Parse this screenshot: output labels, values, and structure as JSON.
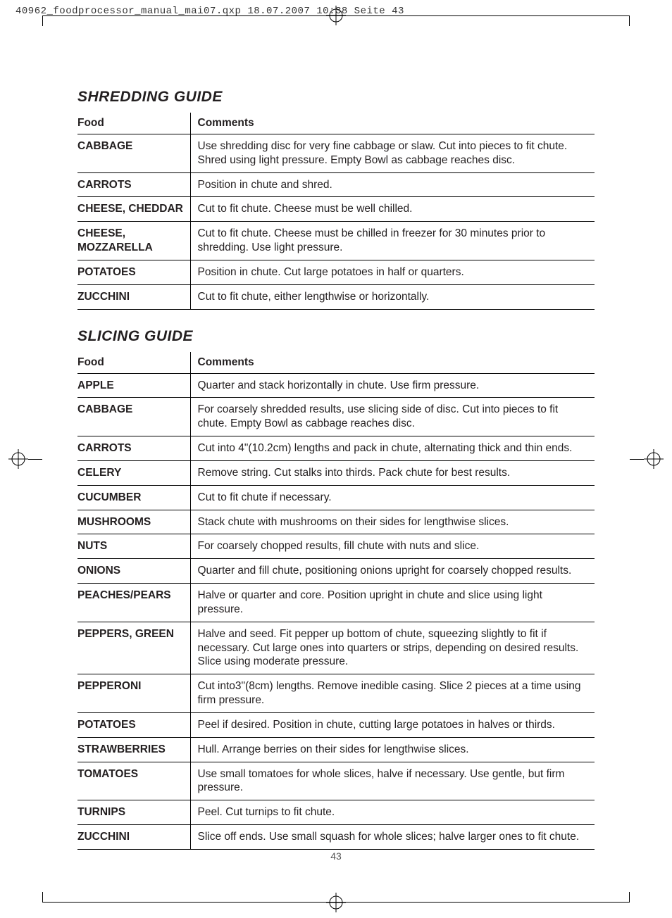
{
  "meta_header": "40962_foodprocessor_manual_mai07.qxp  18.07.2007  10:38  Seite 43",
  "page_number": "43",
  "columns": {
    "food": "Food",
    "comments": "Comments"
  },
  "shredding": {
    "title": "SHREDDING GUIDE",
    "rows": [
      {
        "food": "CABBAGE",
        "comment": "Use shredding disc for very fine cabbage or slaw. Cut into pieces to fit chute. Shred using light pressure. Empty Bowl as cabbage reaches disc."
      },
      {
        "food": "CARROTS",
        "comment": "Position in chute and shred."
      },
      {
        "food": "CHEESE, CHEDDAR",
        "comment": "Cut to fit chute. Cheese must be well chilled."
      },
      {
        "food": "CHEESE, MOZZARELLA",
        "comment": "Cut to fit chute. Cheese must be chilled in freezer for 30 minutes prior to shredding. Use light pressure."
      },
      {
        "food": "POTATOES",
        "comment": "Position in chute. Cut large potatoes in half or quarters."
      },
      {
        "food": "ZUCCHINI",
        "comment": "Cut to fit chute, either lengthwise or horizontally."
      }
    ]
  },
  "slicing": {
    "title": "SLICING GUIDE",
    "rows": [
      {
        "food": "APPLE",
        "comment": "Quarter and stack horizontally in chute. Use firm pressure."
      },
      {
        "food": "CABBAGE",
        "comment": "For coarsely shredded results, use slicing side of disc. Cut into pieces to fit chute. Empty Bowl as cabbage reaches disc."
      },
      {
        "food": "CARROTS",
        "comment": "Cut into 4\"(10.2cm) lengths and pack in chute, alternating thick and thin ends."
      },
      {
        "food": "CELERY",
        "comment": "Remove string. Cut stalks into thirds. Pack chute for best results."
      },
      {
        "food": "CUCUMBER",
        "comment": "Cut to fit chute if necessary."
      },
      {
        "food": "MUSHROOMS",
        "comment": "Stack chute with mushrooms on their sides for lengthwise slices."
      },
      {
        "food": "NUTS",
        "comment": "For coarsely chopped results, fill chute with nuts and slice."
      },
      {
        "food": "ONIONS",
        "comment": "Quarter and fill chute, positioning onions upright for coarsely chopped results."
      },
      {
        "food": "PEACHES/PEARS",
        "comment": "Halve or quarter and core. Position upright in chute and slice using light pressure."
      },
      {
        "food": "PEPPERS, GREEN",
        "comment": "Halve and seed. Fit pepper up bottom of chute, squeezing slightly to fit if necessary. Cut large ones into quarters or strips, depending on desired results. Slice using moderate pressure."
      },
      {
        "food": "PEPPERONI",
        "comment": "Cut into3\"(8cm) lengths. Remove inedible casing. Slice 2 pieces at a time using firm pressure."
      },
      {
        "food": "POTATOES",
        "comment": "Peel if desired. Position in chute, cutting large potatoes in halves or thirds."
      },
      {
        "food": "STRAWBERRIES",
        "comment": "Hull. Arrange berries on their sides for lengthwise slices."
      },
      {
        "food": "TOMATOES",
        "comment": "Use small tomatoes for whole slices, halve if necessary. Use gentle, but firm pressure."
      },
      {
        "food": "TURNIPS",
        "comment": "Peel. Cut turnips to fit chute."
      },
      {
        "food": "ZUCCHINI",
        "comment": "Slice off ends. Use small squash for whole slices; halve larger ones to fit chute."
      }
    ]
  }
}
